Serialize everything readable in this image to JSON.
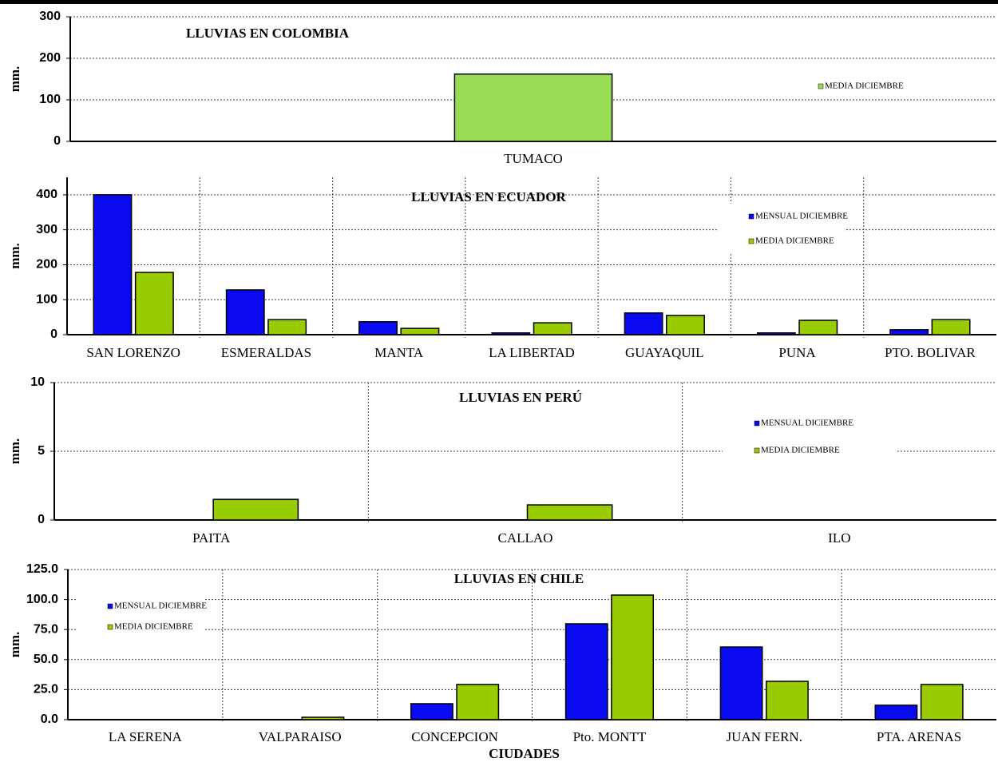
{
  "chart_data": [
    {
      "type": "bar",
      "title": "LLUVIAS EN COLOMBIA",
      "ylabel": "mm.",
      "categories": [
        "TUMACO"
      ],
      "series": [
        {
          "name": "MEDIA DICIEMBRE",
          "color": "#99dd55",
          "values": [
            162
          ]
        }
      ],
      "ylim": [
        0,
        300
      ],
      "yticks": [
        0,
        100,
        200,
        300
      ],
      "grid": "y",
      "legend": "right"
    },
    {
      "type": "bar",
      "title": "LLUVIAS EN ECUADOR",
      "ylabel": "mm.",
      "categories": [
        "SAN LORENZO",
        "ESMERALDAS",
        "MANTA",
        "LA LIBERTAD",
        "GUAYAQUIL",
        "PUNA",
        "PTO. BOLIVAR"
      ],
      "series": [
        {
          "name": "MENSUAL DICIEMBRE",
          "color": "#0a0af0",
          "values": [
            400,
            128,
            37,
            5,
            62,
            5,
            14
          ]
        },
        {
          "name": "MEDIA DICIEMBRE",
          "color": "#99cc00",
          "values": [
            178,
            43,
            18,
            34,
            55,
            41,
            43
          ]
        }
      ],
      "ylim": [
        0,
        450
      ],
      "yticks": [
        0,
        100,
        200,
        300,
        400
      ],
      "grid": "both",
      "legend": "right"
    },
    {
      "type": "bar",
      "title": "LLUVIAS EN PERÚ",
      "ylabel": "mm.",
      "categories": [
        "PAITA",
        "CALLAO",
        "ILO"
      ],
      "series": [
        {
          "name": "MENSUAL DICIEMBRE",
          "color": "#0a0af0",
          "values": [
            0,
            0,
            0
          ]
        },
        {
          "name": "MEDIA DICIEMBRE",
          "color": "#99cc00",
          "values": [
            1.5,
            1.1,
            0
          ]
        }
      ],
      "ylim": [
        0,
        10
      ],
      "yticks": [
        0,
        5,
        10
      ],
      "grid": "both",
      "legend": "right"
    },
    {
      "type": "bar",
      "title": "LLUVIAS EN CHILE",
      "ylabel": "mm.",
      "xlabel": "CIUDADES",
      "categories": [
        "LA SERENA",
        "VALPARAISO",
        "CONCEPCION",
        "Pto. MONTT",
        "JUAN FERN.",
        "PTA. ARENAS"
      ],
      "series": [
        {
          "name": "MENSUAL DICIEMBRE",
          "color": "#0a0af0",
          "values": [
            0,
            0,
            13.3,
            79.8,
            60.5,
            12
          ]
        },
        {
          "name": "MEDIA DICIEMBRE",
          "color": "#99cc00",
          "values": [
            0,
            2,
            29.3,
            103.7,
            31.9,
            29.3
          ]
        }
      ],
      "ylim": [
        0,
        125
      ],
      "yticks": [
        {
          "value": 0,
          "label": "0.0"
        },
        {
          "value": 25,
          "label": "25.0"
        },
        {
          "value": 50,
          "label": "50.0"
        },
        {
          "value": 75,
          "label": "75.0"
        },
        {
          "value": 100,
          "label": "100.0"
        },
        {
          "value": 125,
          "label": "125.0"
        }
      ],
      "grid": "both",
      "legend": "left"
    }
  ]
}
